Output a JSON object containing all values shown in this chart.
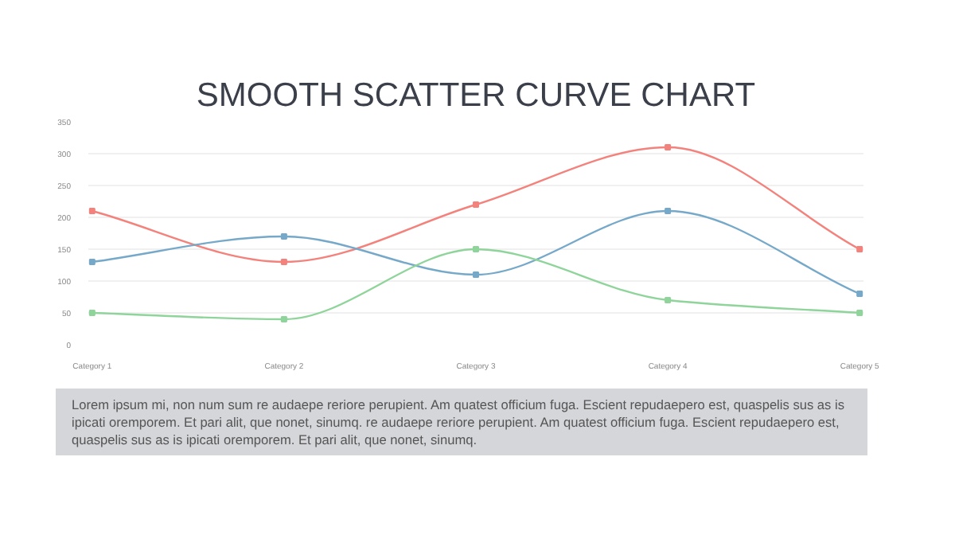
{
  "chart_data": {
    "type": "line",
    "title": "SMOOTH SCATTER CURVE CHART",
    "categories": [
      "Category 1",
      "Category 2",
      "Category 3",
      "Category 4",
      "Category 5"
    ],
    "series": [
      {
        "color": "#f4827c",
        "values": [
          210,
          130,
          220,
          310,
          150
        ]
      },
      {
        "color": "#76a9c9",
        "values": [
          130,
          170,
          110,
          210,
          80
        ]
      },
      {
        "color": "#8fd49a",
        "values": [
          50,
          40,
          150,
          70,
          50
        ]
      }
    ],
    "ylim": [
      0,
      350
    ],
    "yticks": [
      0,
      50,
      100,
      150,
      200,
      250,
      300,
      350
    ],
    "grid": "y",
    "marker": "square",
    "line_style": "solid",
    "annotations": [
      "Lorem ipsum mi, non num sum re audaepe reriore perupient. Am quatest officium fuga. Escient repudaepero est, quaspelis sus as is ipicati oremporem. Et pari alit, que nonet, sinumq. re audaepe reriore perupient. Am quatest officium fuga. Escient repudaepero est, quaspelis sus as is ipicati oremporem. Et pari alit, que nonet, sinumq."
    ]
  }
}
